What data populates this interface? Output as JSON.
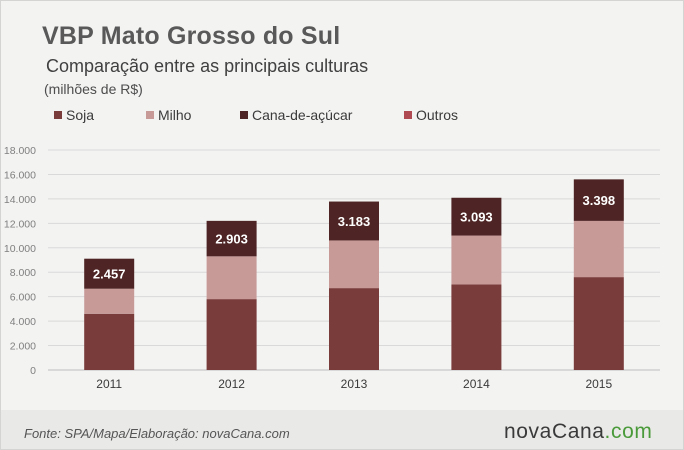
{
  "title": "VBP Mato Grosso do Sul",
  "subtitle": "Comparação entre as principais culturas",
  "unit": "(milhões de R$)",
  "legend": [
    {
      "label": "Soja",
      "color": "#7a3b3b"
    },
    {
      "label": "Milho",
      "color": "#c79a98"
    },
    {
      "label": "Cana-de-açúcar",
      "color": "#4e2424"
    },
    {
      "label": "Outros",
      "color": "#b04a52"
    }
  ],
  "source": "Fonte: SPA/Mapa/Elaboração: novaCana.com",
  "logo": {
    "main": "novaCana",
    "suffix": ".com"
  },
  "chart_data": {
    "type": "bar",
    "stacked": true,
    "categories": [
      "2011",
      "2012",
      "2013",
      "2014",
      "2015"
    ],
    "series": [
      {
        "name": "Soja",
        "color": "#7a3b3b",
        "values": [
          4600,
          5800,
          6700,
          7000,
          7600
        ]
      },
      {
        "name": "Milho",
        "color": "#c79a98",
        "values": [
          2050,
          3500,
          3900,
          4000,
          4600
        ]
      },
      {
        "name": "Cana-de-açúcar",
        "color": "#4e2424",
        "values": [
          2457,
          2903,
          3183,
          3093,
          3398
        ]
      },
      {
        "name": "Outros",
        "color": "#b04a52",
        "values": [
          0,
          0,
          0,
          0,
          0
        ]
      }
    ],
    "data_labels": {
      "series": "Cana-de-açúcar",
      "values": [
        "2.457",
        "2.903",
        "3.183",
        "3.093",
        "3.398"
      ]
    },
    "y_ticks": [
      "0",
      "2.000",
      "4.000",
      "6.000",
      "8.000",
      "10.000",
      "12.000",
      "14.000",
      "16.000",
      "18.000"
    ],
    "ylim": [
      0,
      18000
    ],
    "grid": true
  }
}
